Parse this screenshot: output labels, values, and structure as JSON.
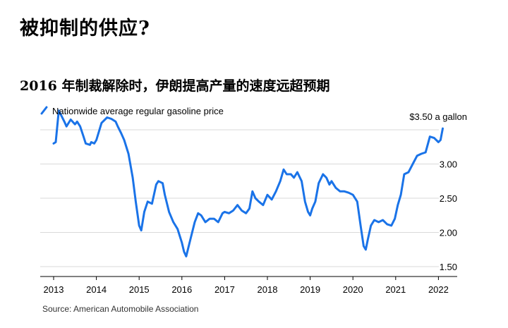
{
  "heading": "被抑制的供应?",
  "chart_data": {
    "type": "line",
    "title": "2016 年制裁解除时，伊朗提高产量的速度远超预期",
    "xlabel": "",
    "ylabel": "",
    "xlim": [
      2012.95,
      2022.7
    ],
    "ylim": [
      1.5,
      3.8
    ],
    "yticks": [
      3.0,
      2.5,
      2.0,
      1.5
    ],
    "ytick_labels": [
      "3.00",
      "2.50",
      "2.00",
      "1.50"
    ],
    "xticks": [
      2013,
      2014,
      2015,
      2016,
      2017,
      2018,
      2019,
      2020,
      2021,
      2022
    ],
    "xtick_labels": [
      "2013",
      "2014",
      "2015",
      "2016",
      "2017",
      "2018",
      "2019",
      "2020",
      "2021",
      "2022"
    ],
    "grid": true,
    "legend": "top-left",
    "annotation": {
      "text": "$3.50 a gallon",
      "x": 2022.1,
      "y": 3.5
    },
    "series": [
      {
        "name": "Nationwide average regular gasoline price",
        "color": "#1a73e8",
        "x": [
          2013.0,
          2013.05,
          2013.12,
          2013.17,
          2013.25,
          2013.3,
          2013.4,
          2013.5,
          2013.55,
          2013.62,
          2013.7,
          2013.75,
          2013.85,
          2013.88,
          2013.95,
          2014.0,
          2014.12,
          2014.25,
          2014.35,
          2014.45,
          2014.5,
          2014.58,
          2014.65,
          2014.75,
          2014.85,
          2014.92,
          2015.0,
          2015.05,
          2015.12,
          2015.2,
          2015.3,
          2015.4,
          2015.45,
          2015.55,
          2015.6,
          2015.7,
          2015.8,
          2015.9,
          2016.0,
          2016.05,
          2016.1,
          2016.2,
          2016.3,
          2016.38,
          2016.45,
          2016.55,
          2016.65,
          2016.75,
          2016.85,
          2016.95,
          2017.0,
          2017.1,
          2017.2,
          2017.3,
          2017.4,
          2017.5,
          2017.58,
          2017.65,
          2017.72,
          2017.8,
          2017.9,
          2018.0,
          2018.1,
          2018.2,
          2018.3,
          2018.38,
          2018.45,
          2018.55,
          2018.62,
          2018.7,
          2018.8,
          2018.88,
          2018.95,
          2019.0,
          2019.05,
          2019.12,
          2019.2,
          2019.3,
          2019.38,
          2019.45,
          2019.5,
          2019.6,
          2019.7,
          2019.8,
          2019.9,
          2020.0,
          2020.1,
          2020.18,
          2020.25,
          2020.3,
          2020.35,
          2020.42,
          2020.5,
          2020.6,
          2020.7,
          2020.8,
          2020.9,
          2020.98,
          2021.05,
          2021.12,
          2021.2,
          2021.3,
          2021.4,
          2021.5,
          2021.6,
          2021.7,
          2021.8,
          2021.9,
          2022.0,
          2022.05,
          2022.1
        ],
        "values": [
          3.3,
          3.32,
          3.78,
          3.72,
          3.62,
          3.55,
          3.65,
          3.58,
          3.62,
          3.55,
          3.4,
          3.3,
          3.28,
          3.32,
          3.3,
          3.35,
          3.6,
          3.68,
          3.66,
          3.62,
          3.55,
          3.45,
          3.35,
          3.15,
          2.8,
          2.45,
          2.1,
          2.03,
          2.3,
          2.45,
          2.42,
          2.7,
          2.75,
          2.72,
          2.55,
          2.3,
          2.15,
          2.05,
          1.85,
          1.72,
          1.65,
          1.9,
          2.15,
          2.28,
          2.25,
          2.15,
          2.2,
          2.2,
          2.15,
          2.28,
          2.3,
          2.28,
          2.32,
          2.4,
          2.32,
          2.28,
          2.35,
          2.6,
          2.5,
          2.45,
          2.4,
          2.55,
          2.48,
          2.6,
          2.75,
          2.92,
          2.85,
          2.85,
          2.8,
          2.88,
          2.75,
          2.45,
          2.3,
          2.25,
          2.35,
          2.45,
          2.72,
          2.85,
          2.8,
          2.7,
          2.75,
          2.65,
          2.6,
          2.6,
          2.58,
          2.55,
          2.45,
          2.1,
          1.8,
          1.75,
          1.9,
          2.1,
          2.18,
          2.15,
          2.18,
          2.12,
          2.1,
          2.2,
          2.4,
          2.55,
          2.85,
          2.88,
          3.0,
          3.12,
          3.15,
          3.17,
          3.4,
          3.38,
          3.32,
          3.35,
          3.52
        ]
      }
    ]
  },
  "source": "Source: American Automobile Association"
}
